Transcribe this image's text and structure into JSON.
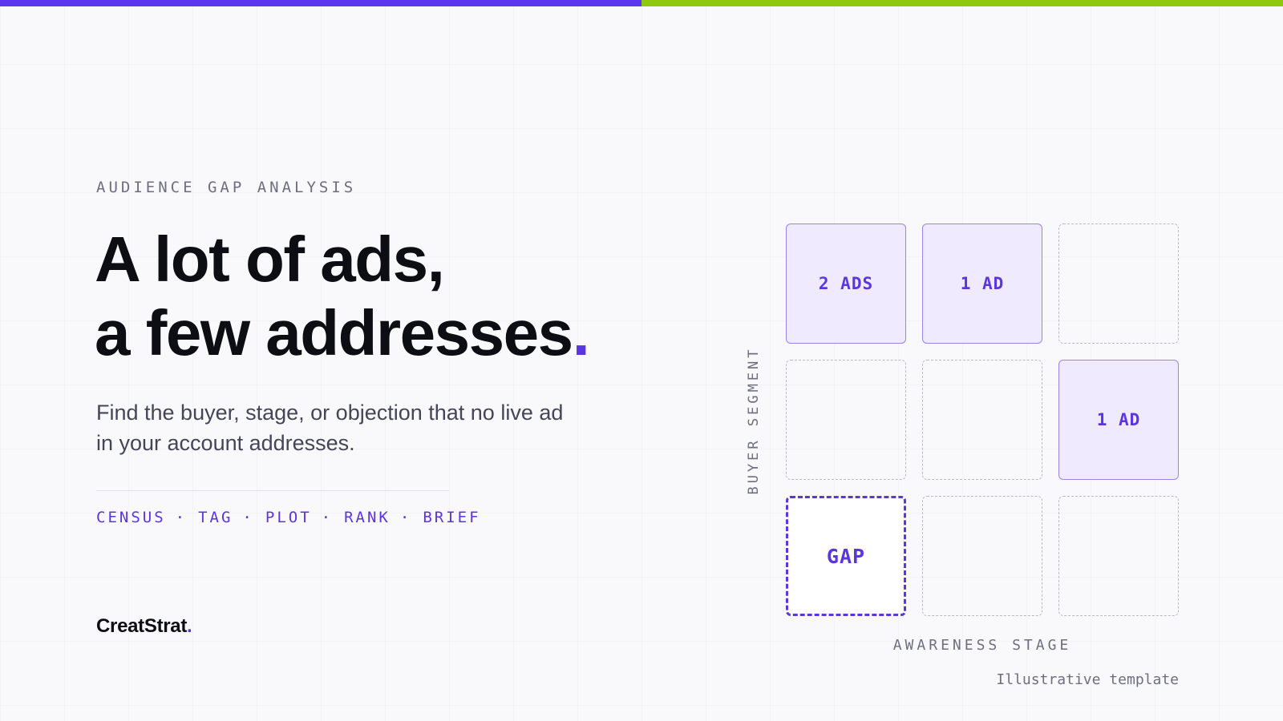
{
  "colors": {
    "accent": "#5b35e0",
    "accent_bar_left": "#5b35f0",
    "accent_bar_right": "#8ec810",
    "text_dark": "#0d0d14",
    "text_muted": "#6e6e80",
    "cell_fill": "#efeafd",
    "cell_border": "#9a84e8"
  },
  "eyebrow": "AUDIENCE GAP ANALYSIS",
  "headline": {
    "line1": "A lot of ads,",
    "line2": "a few addresses",
    "dot": "."
  },
  "subtitle": {
    "line1": "Find the buyer, stage, or objection that no live ad",
    "line2": "in your account addresses."
  },
  "steps": {
    "items": [
      "CENSUS",
      "TAG",
      "PLOT",
      "RANK",
      "BRIEF"
    ],
    "separator": "·"
  },
  "brand": {
    "name": "CreatStrat",
    "dot": "."
  },
  "matrix": {
    "y_axis_label": "BUYER SEGMENT",
    "x_axis_label": "AWARENESS STAGE",
    "rows": [
      [
        {
          "type": "filled",
          "label": "2 ADS"
        },
        {
          "type": "filled",
          "label": "1 AD"
        },
        {
          "type": "empty",
          "label": ""
        }
      ],
      [
        {
          "type": "empty",
          "label": ""
        },
        {
          "type": "empty",
          "label": ""
        },
        {
          "type": "filled",
          "label": "1 AD"
        }
      ],
      [
        {
          "type": "gap",
          "label": "GAP"
        },
        {
          "type": "empty",
          "label": ""
        },
        {
          "type": "empty",
          "label": ""
        }
      ]
    ]
  },
  "footnote": "Illustrative template"
}
